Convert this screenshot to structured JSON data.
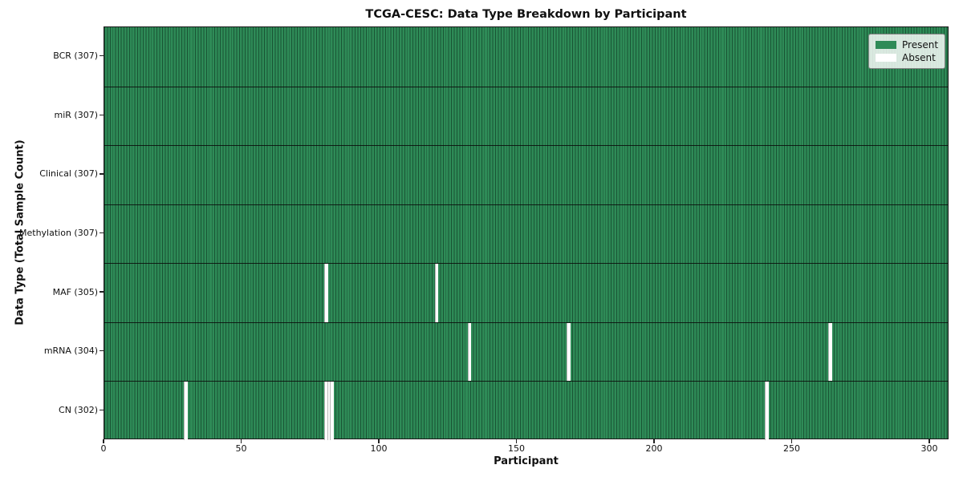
{
  "title": "TCGA-CESC: Data Type Breakdown by Participant",
  "axes": {
    "xlabel": "Participant",
    "ylabel": "Data Type (Total Sample Count)",
    "x_tick_labels": [
      "0",
      "50",
      "100",
      "150",
      "200",
      "250",
      "300"
    ],
    "x_tick_values": [
      0,
      50,
      100,
      150,
      200,
      250,
      300
    ]
  },
  "legend": {
    "position": "upper right",
    "items": [
      {
        "label": "Present",
        "color": "#2e8b57"
      },
      {
        "label": "Absent",
        "color": "#ffffff"
      }
    ]
  },
  "colors": {
    "present": "#2e8b57",
    "absent": "#ffffff",
    "cell_edge": "#1d5939",
    "row_divider": "#0d0d0d",
    "axis": "#1a1a1a"
  },
  "chart_data": {
    "type": "heatmap",
    "title": "TCGA-CESC: Data Type Breakdown by Participant",
    "xlabel": "Participant",
    "ylabel": "Data Type (Total Sample Count)",
    "x_range": [
      0,
      307
    ],
    "x_ticks": [
      0,
      50,
      100,
      150,
      200,
      250,
      300
    ],
    "total_participants": 307,
    "grid": false,
    "legend_position": "upper right",
    "legend": [
      {
        "label": "Present",
        "color": "#2e8b57"
      },
      {
        "label": "Absent",
        "color": "#ffffff"
      }
    ],
    "rows": [
      {
        "label": "BCR (307)",
        "data_type": "BCR",
        "present_count": 307,
        "absent_participants": []
      },
      {
        "label": "miR (307)",
        "data_type": "miR",
        "present_count": 307,
        "absent_participants": []
      },
      {
        "label": "Clinical (307)",
        "data_type": "Clinical",
        "present_count": 307,
        "absent_participants": []
      },
      {
        "label": "Methylation (307)",
        "data_type": "Methylation",
        "present_count": 307,
        "absent_participants": []
      },
      {
        "label": "MAF (305)",
        "data_type": "MAF",
        "present_count": 305,
        "absent_participants": [
          80,
          120
        ]
      },
      {
        "label": "mRNA (304)",
        "data_type": "mRNA",
        "present_count": 304,
        "absent_participants": [
          132,
          168,
          263
        ]
      },
      {
        "label": "CN (302)",
        "data_type": "CN",
        "present_count": 302,
        "absent_participants": [
          29,
          80,
          81,
          82,
          240
        ]
      }
    ]
  }
}
